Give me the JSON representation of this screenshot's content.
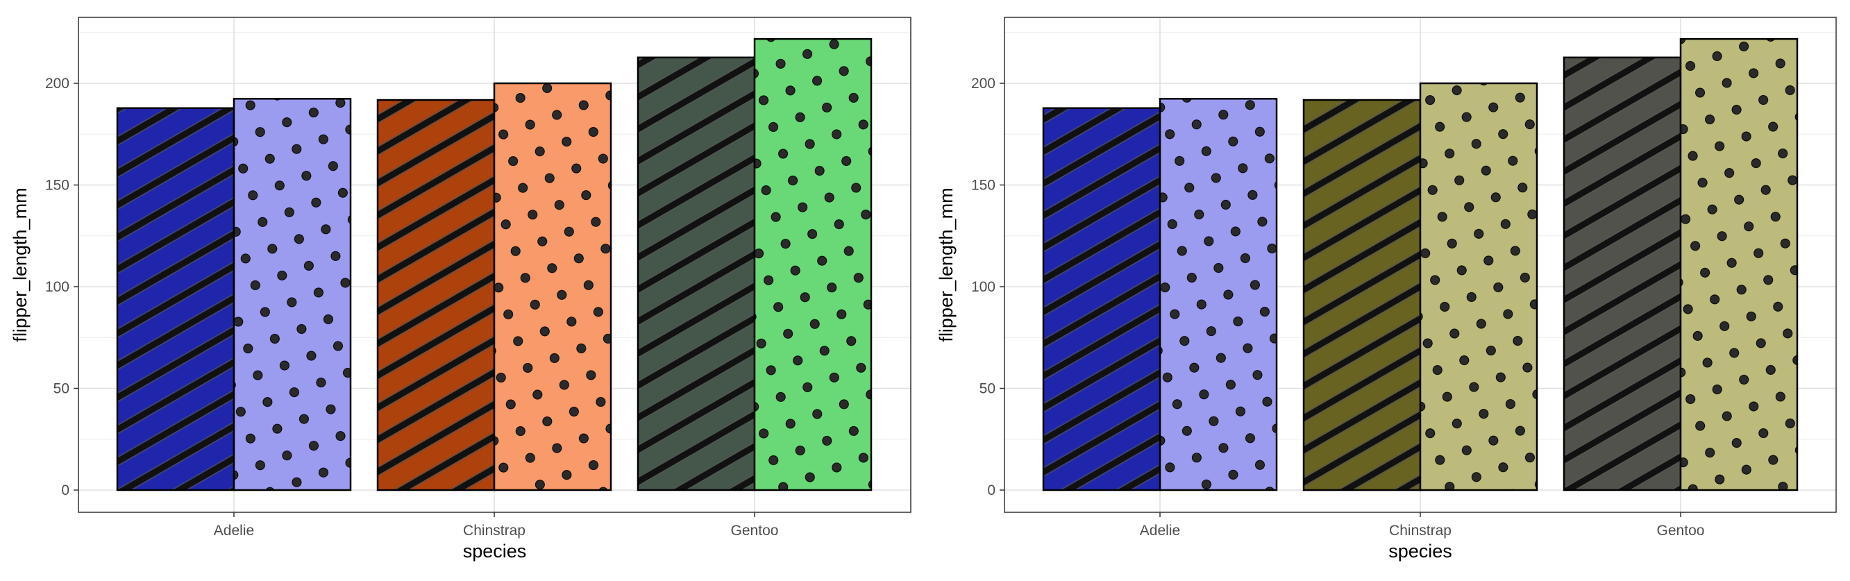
{
  "chart_data": [
    {
      "type": "bar",
      "xlabel": "species",
      "ylabel": "flipper_length_mm",
      "categories": [
        "Adelie",
        "Chinstrap",
        "Gentoo"
      ],
      "ylim": [
        0,
        230
      ],
      "yticks": [
        0,
        50,
        100,
        150,
        200
      ],
      "grid": true,
      "legend": "none",
      "series": [
        {
          "pattern": "stripe",
          "values": [
            187.8,
            191.8,
            212.7
          ],
          "fills": [
            "#1f26ac",
            "#ad420d",
            "#44574a"
          ]
        },
        {
          "pattern": "circle",
          "values": [
            192.4,
            200.0,
            221.8
          ],
          "fills": [
            "#9b9cf0",
            "#f99a6a",
            "#69d977"
          ]
        }
      ]
    },
    {
      "type": "bar",
      "xlabel": "species",
      "ylabel": "flipper_length_mm",
      "categories": [
        "Adelie",
        "Chinstrap",
        "Gentoo"
      ],
      "ylim": [
        0,
        230
      ],
      "yticks": [
        0,
        50,
        100,
        150,
        200
      ],
      "grid": true,
      "legend": "none",
      "series": [
        {
          "pattern": "stripe",
          "values": [
            187.8,
            191.8,
            212.7
          ],
          "fills": [
            "#1f26ac",
            "#686321",
            "#52524c"
          ]
        },
        {
          "pattern": "circle",
          "values": [
            192.4,
            200.0,
            221.8
          ],
          "fills": [
            "#9b9cf0",
            "#bdbb7b",
            "#bdbb7b"
          ]
        }
      ]
    }
  ]
}
